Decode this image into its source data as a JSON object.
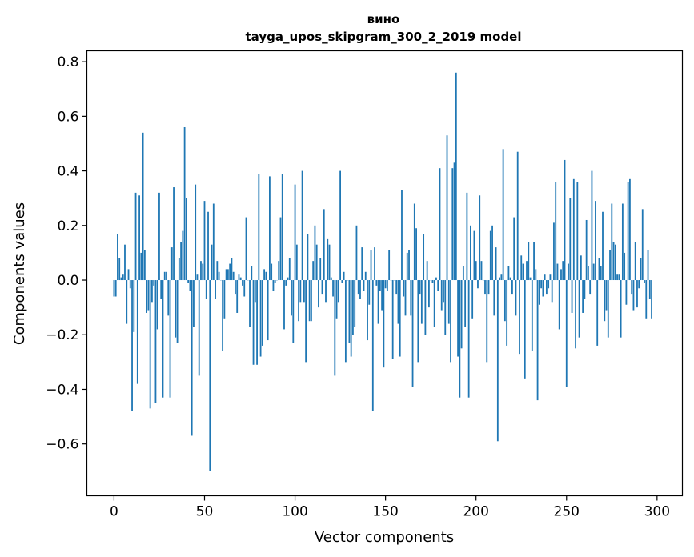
{
  "chart_data": {
    "type": "bar",
    "title": "вино",
    "subtitle": "tayga_upos_skipgram_300_2_2019 model",
    "xlabel": "Vector components",
    "ylabel": "Components values",
    "xlim": [
      -15,
      314
    ],
    "ylim": [
      -0.79,
      0.84
    ],
    "xticks": [
      0,
      50,
      100,
      150,
      200,
      250,
      300
    ],
    "xtick_labels": [
      "0",
      "50",
      "100",
      "150",
      "200",
      "250",
      "300"
    ],
    "yticks": [
      0.8,
      0.6,
      0.4,
      0.2,
      0.0,
      -0.2,
      -0.4,
      -0.6
    ],
    "ytick_labels": [
      "0.8",
      "0.6",
      "0.4",
      "0.2",
      "0.0",
      "−0.2",
      "−0.4",
      "−0.6"
    ],
    "grid": false,
    "bar_color": "#1f77b4",
    "categories_note": "component index 0..299",
    "values": [
      -0.06,
      -0.06,
      0.17,
      0.08,
      0.01,
      0.02,
      0.13,
      -0.16,
      0.04,
      -0.03,
      -0.48,
      -0.19,
      0.32,
      -0.38,
      0.31,
      0.1,
      0.54,
      0.11,
      -0.12,
      -0.11,
      -0.47,
      -0.08,
      -0.02,
      -0.45,
      -0.18,
      0.32,
      -0.07,
      -0.43,
      0.03,
      0.03,
      -0.13,
      -0.43,
      0.12,
      0.34,
      -0.21,
      -0.23,
      0.08,
      0.14,
      0.18,
      0.56,
      0.3,
      -0.01,
      -0.04,
      -0.57,
      -0.17,
      0.35,
      0.02,
      -0.35,
      0.07,
      0.06,
      0.29,
      -0.07,
      0.25,
      -0.7,
      0.13,
      0.28,
      -0.07,
      0.07,
      0.03,
      0.0,
      -0.26,
      -0.14,
      0.04,
      0.04,
      0.06,
      0.08,
      0.03,
      -0.05,
      -0.12,
      0.02,
      0.01,
      -0.02,
      -0.06,
      0.23,
      0.0,
      -0.17,
      0.05,
      -0.31,
      -0.08,
      -0.31,
      0.39,
      -0.28,
      -0.24,
      0.04,
      0.03,
      -0.22,
      0.38,
      0.06,
      -0.04,
      -0.01,
      0.0,
      0.07,
      0.23,
      0.39,
      -0.18,
      -0.02,
      0.01,
      0.08,
      -0.13,
      -0.23,
      0.35,
      0.13,
      -0.15,
      -0.08,
      0.4,
      -0.08,
      -0.3,
      0.17,
      -0.15,
      -0.15,
      0.07,
      0.2,
      0.13,
      -0.1,
      0.08,
      -0.05,
      0.26,
      -0.08,
      0.15,
      0.13,
      0.01,
      -0.06,
      -0.35,
      -0.14,
      -0.08,
      0.4,
      -0.01,
      0.03,
      -0.3,
      0.0,
      -0.23,
      -0.28,
      -0.2,
      -0.17,
      0.2,
      -0.05,
      -0.07,
      0.12,
      -0.04,
      0.03,
      -0.22,
      -0.09,
      0.11,
      -0.48,
      0.12,
      -0.02,
      -0.16,
      -0.04,
      -0.11,
      -0.32,
      -0.03,
      -0.04,
      0.11,
      0.0,
      -0.29,
      0.0,
      -0.05,
      -0.16,
      -0.28,
      0.33,
      -0.06,
      -0.13,
      0.1,
      0.11,
      -0.13,
      -0.39,
      0.28,
      0.19,
      -0.3,
      -0.05,
      -0.16,
      0.17,
      -0.2,
      0.07,
      -0.1,
      0.0,
      -0.01,
      -0.17,
      0.01,
      -0.04,
      0.41,
      -0.11,
      -0.08,
      -0.2,
      0.53,
      -0.16,
      -0.3,
      0.41,
      0.43,
      0.76,
      -0.28,
      -0.43,
      -0.25,
      0.05,
      -0.17,
      0.32,
      -0.43,
      0.2,
      -0.14,
      0.18,
      0.07,
      -0.03,
      0.31,
      0.07,
      0.0,
      -0.05,
      -0.3,
      -0.05,
      0.18,
      0.2,
      -0.13,
      0.12,
      -0.59,
      0.01,
      0.02,
      0.48,
      -0.15,
      -0.24,
      0.05,
      0.01,
      -0.05,
      0.23,
      -0.13,
      0.47,
      -0.27,
      0.09,
      0.06,
      -0.36,
      0.07,
      0.14,
      0.01,
      -0.26,
      0.14,
      0.04,
      -0.44,
      -0.09,
      -0.03,
      -0.06,
      0.02,
      -0.05,
      -0.03,
      0.02,
      -0.08,
      0.21,
      0.36,
      0.06,
      -0.18,
      0.04,
      0.07,
      0.44,
      -0.39,
      0.06,
      0.3,
      -0.12,
      0.37,
      -0.25,
      0.36,
      -0.21,
      0.09,
      -0.12,
      -0.07,
      0.22,
      0.05,
      -0.05,
      0.4,
      0.06,
      0.29,
      -0.24,
      0.08,
      0.05,
      0.25,
      -0.15,
      -0.11,
      -0.21,
      0.11,
      0.28,
      0.14,
      0.13,
      0.02,
      0.02,
      -0.21,
      0.28,
      0.1,
      -0.09,
      0.36,
      0.37,
      -0.05,
      -0.11,
      0.14,
      -0.1,
      -0.03,
      0.08,
      0.26,
      -0.01,
      -0.14,
      0.11,
      -0.07,
      -0.14
    ]
  }
}
